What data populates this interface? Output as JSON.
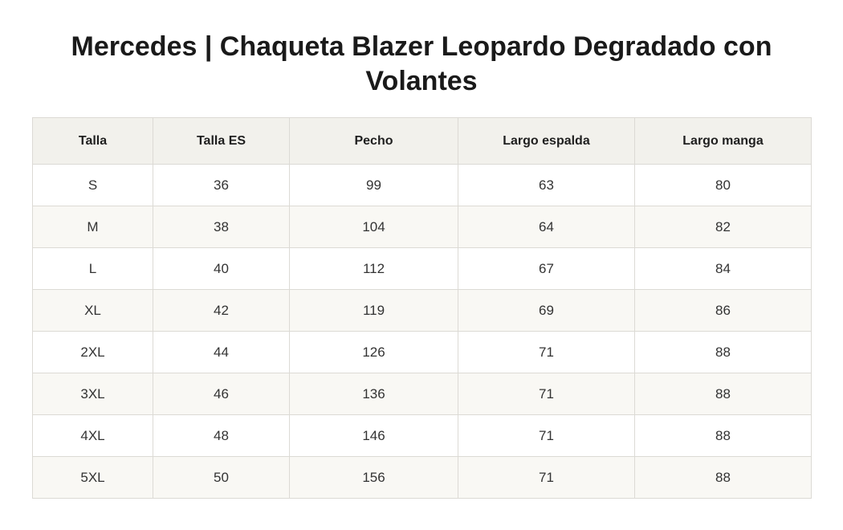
{
  "title": "Mercedes | Chaqueta Blazer Leopardo Degradado con Volantes",
  "table": {
    "headers": [
      "Talla",
      "Talla ES",
      "Pecho",
      "Largo espalda",
      "Largo manga"
    ],
    "rows": [
      [
        "S",
        "36",
        "99",
        "63",
        "80"
      ],
      [
        "M",
        "38",
        "104",
        "64",
        "82"
      ],
      [
        "L",
        "40",
        "112",
        "67",
        "84"
      ],
      [
        "XL",
        "42",
        "119",
        "69",
        "86"
      ],
      [
        "2XL",
        "44",
        "126",
        "71",
        "88"
      ],
      [
        "3XL",
        "46",
        "136",
        "71",
        "88"
      ],
      [
        "4XL",
        "48",
        "146",
        "71",
        "88"
      ],
      [
        "5XL",
        "50",
        "156",
        "71",
        "88"
      ]
    ]
  },
  "colors": {
    "header_bg": "#f2f1ec",
    "alt_row_bg": "#f9f8f4",
    "border": "#dcdad5",
    "text": "#333333"
  }
}
